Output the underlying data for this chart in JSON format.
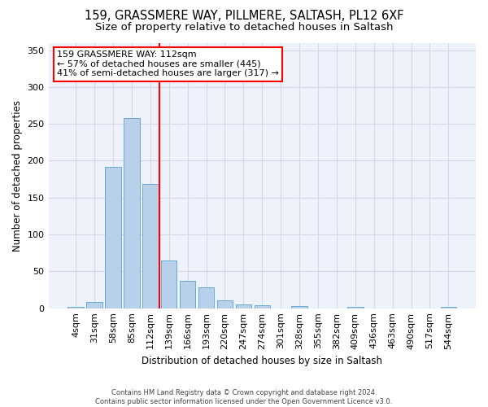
{
  "title": "159, GRASSMERE WAY, PILLMERE, SALTASH, PL12 6XF",
  "subtitle": "Size of property relative to detached houses in Saltash",
  "xlabel": "Distribution of detached houses by size in Saltash",
  "ylabel": "Number of detached properties",
  "footer_line1": "Contains HM Land Registry data © Crown copyright and database right 2024.",
  "footer_line2": "Contains public sector information licensed under the Open Government Licence v3.0.",
  "bar_labels": [
    "4sqm",
    "31sqm",
    "58sqm",
    "85sqm",
    "112sqm",
    "139sqm",
    "166sqm",
    "193sqm",
    "220sqm",
    "247sqm",
    "274sqm",
    "301sqm",
    "328sqm",
    "355sqm",
    "382sqm",
    "409sqm",
    "436sqm",
    "463sqm",
    "490sqm",
    "517sqm",
    "544sqm"
  ],
  "bar_values": [
    2,
    9,
    192,
    258,
    168,
    65,
    37,
    28,
    11,
    5,
    4,
    0,
    3,
    0,
    0,
    2,
    0,
    0,
    0,
    0,
    2
  ],
  "bar_color": "#b8d0ea",
  "bar_edge_color": "#6aaad4",
  "annotation_line_color": "red",
  "annotation_box_text": "159 GRASSMERE WAY: 112sqm\n← 57% of detached houses are smaller (445)\n41% of semi-detached houses are larger (317) →",
  "ylim": [
    0,
    360
  ],
  "yticks": [
    0,
    50,
    100,
    150,
    200,
    250,
    300,
    350
  ],
  "bg_color": "#eef2fa",
  "title_fontsize": 10.5,
  "subtitle_fontsize": 9.5,
  "ylabel_fontsize": 8.5,
  "xlabel_fontsize": 8.5,
  "tick_fontsize": 8,
  "annot_fontsize": 8,
  "footer_fontsize": 6,
  "grid_color": "#d0d8ea"
}
